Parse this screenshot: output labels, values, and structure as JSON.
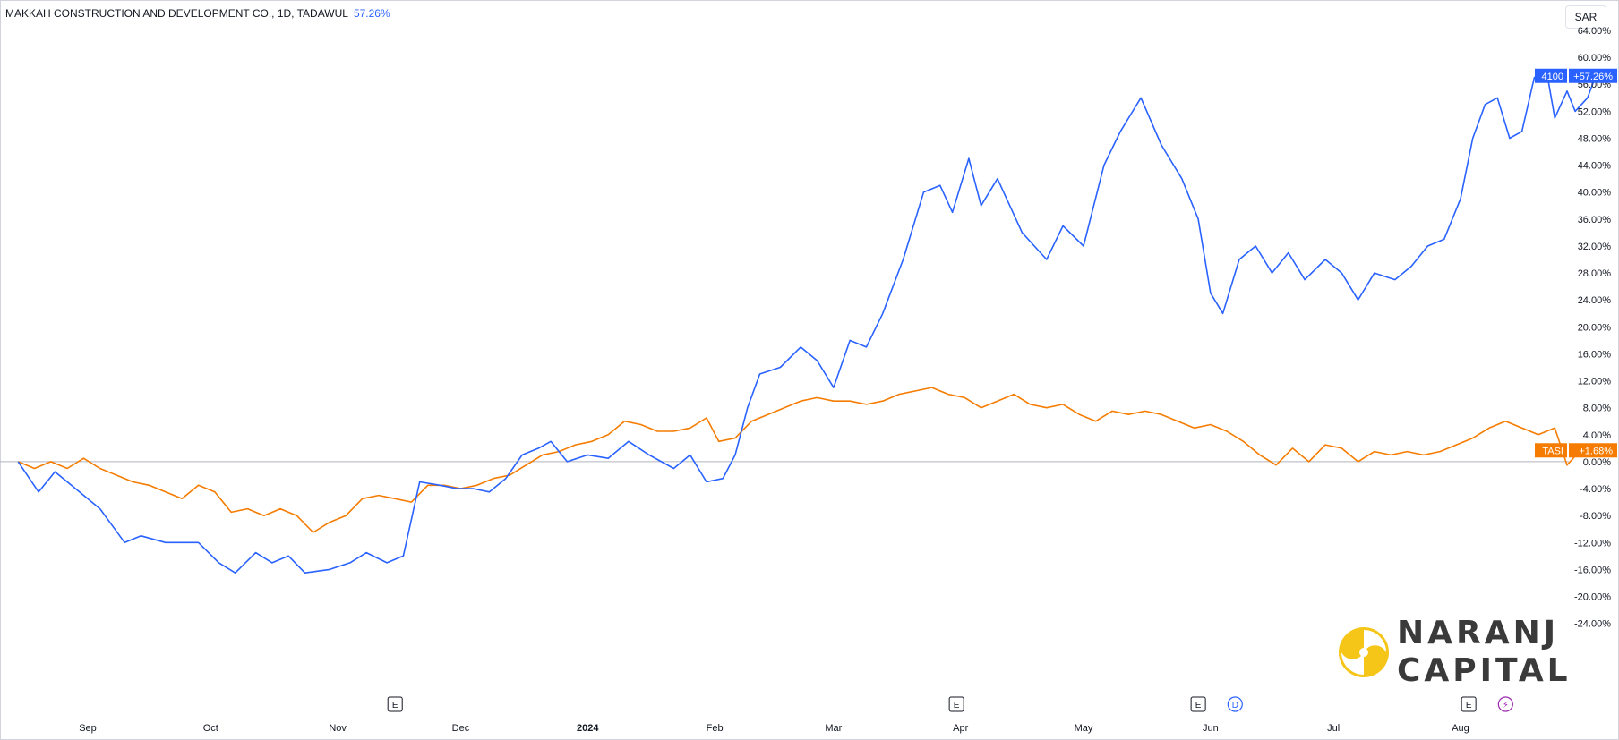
{
  "header": {
    "title": "MAKKAH CONSTRUCTION AND DEVELOPMENT CO., 1D, TADAWUL",
    "change": "57.26%"
  },
  "currency_button": "SAR",
  "watermark": {
    "line1": "NARANJ",
    "line2": "CAPITAL"
  },
  "colors": {
    "blue": "#2962ff",
    "orange": "#f57c00",
    "zero_line": "#b2b5be",
    "grid_text": "#131722"
  },
  "chart_data": {
    "type": "line",
    "title": "MAKKAH CONSTRUCTION AND DEVELOPMENT CO., 1D, TADAWUL",
    "y_unit": "%",
    "ylim": [
      -24,
      66
    ],
    "y_ticks": [
      "64.00%",
      "60.00%",
      "56.00%",
      "52.00%",
      "48.00%",
      "44.00%",
      "40.00%",
      "36.00%",
      "32.00%",
      "28.00%",
      "24.00%",
      "20.00%",
      "16.00%",
      "12.00%",
      "8.00%",
      "4.00%",
      "0.00%",
      "-4.00%",
      "-8.00%",
      "-12.00%",
      "-16.00%",
      "-20.00%",
      "-24.00%"
    ],
    "y_tick_values": [
      64,
      60,
      56,
      52,
      48,
      44,
      40,
      36,
      32,
      28,
      24,
      20,
      16,
      12,
      8,
      4,
      0,
      -4,
      -8,
      -12,
      -16,
      -20,
      -24
    ],
    "x_labels": [
      {
        "text": "Sep",
        "date": "2023-09-01"
      },
      {
        "text": "Oct",
        "date": "2023-10-01"
      },
      {
        "text": "Nov",
        "date": "2023-11-01"
      },
      {
        "text": "Dec",
        "date": "2023-12-01"
      },
      {
        "text": "2024",
        "date": "2024-01-01",
        "bold": true
      },
      {
        "text": "Feb",
        "date": "2024-02-01"
      },
      {
        "text": "Mar",
        "date": "2024-03-01"
      },
      {
        "text": "Apr",
        "date": "2024-04-01"
      },
      {
        "text": "May",
        "date": "2024-05-01"
      },
      {
        "text": "Jun",
        "date": "2024-06-01"
      },
      {
        "text": "Jul",
        "date": "2024-07-01"
      },
      {
        "text": "Aug",
        "date": "2024-08-01"
      }
    ],
    "x_range": [
      "2023-08-15",
      "2024-08-15"
    ],
    "grid": false,
    "series": [
      {
        "name": "4100",
        "label": "+57.26%",
        "color": "#2962ff",
        "points": [
          [
            "2023-08-15",
            0
          ],
          [
            "2023-08-20",
            -4.5
          ],
          [
            "2023-08-24",
            -1.5
          ],
          [
            "2023-08-28",
            -3.5
          ],
          [
            "2023-09-04",
            -7
          ],
          [
            "2023-09-10",
            -12
          ],
          [
            "2023-09-14",
            -11
          ],
          [
            "2023-09-20",
            -12
          ],
          [
            "2023-09-28",
            -12
          ],
          [
            "2023-10-03",
            -15
          ],
          [
            "2023-10-07",
            -16.5
          ],
          [
            "2023-10-12",
            -13.5
          ],
          [
            "2023-10-16",
            -15
          ],
          [
            "2023-10-20",
            -14
          ],
          [
            "2023-10-24",
            -16.5
          ],
          [
            "2023-10-30",
            -16
          ],
          [
            "2023-11-04",
            -15
          ],
          [
            "2023-11-08",
            -13.5
          ],
          [
            "2023-11-13",
            -15
          ],
          [
            "2023-11-17",
            -14
          ],
          [
            "2023-11-21",
            -3
          ],
          [
            "2023-11-26",
            -3.5
          ],
          [
            "2023-11-30",
            -4
          ],
          [
            "2023-12-04",
            -4
          ],
          [
            "2023-12-08",
            -4.5
          ],
          [
            "2023-12-12",
            -2.5
          ],
          [
            "2023-12-16",
            1
          ],
          [
            "2023-12-20",
            2
          ],
          [
            "2023-12-23",
            3
          ],
          [
            "2023-12-27",
            0
          ],
          [
            "2024-01-01",
            1
          ],
          [
            "2024-01-06",
            0.5
          ],
          [
            "2024-01-11",
            3
          ],
          [
            "2024-01-16",
            1
          ],
          [
            "2024-01-22",
            -1
          ],
          [
            "2024-01-26",
            1
          ],
          [
            "2024-01-30",
            -3
          ],
          [
            "2024-02-03",
            -2.5
          ],
          [
            "2024-02-06",
            1
          ],
          [
            "2024-02-09",
            8
          ],
          [
            "2024-02-12",
            13
          ],
          [
            "2024-02-17",
            14
          ],
          [
            "2024-02-22",
            17
          ],
          [
            "2024-02-26",
            15
          ],
          [
            "2024-03-01",
            11
          ],
          [
            "2024-03-05",
            18
          ],
          [
            "2024-03-09",
            17
          ],
          [
            "2024-03-13",
            22
          ],
          [
            "2024-03-18",
            30
          ],
          [
            "2024-03-23",
            40
          ],
          [
            "2024-03-27",
            41
          ],
          [
            "2024-03-30",
            37
          ],
          [
            "2024-04-03",
            45
          ],
          [
            "2024-04-06",
            38
          ],
          [
            "2024-04-10",
            42
          ],
          [
            "2024-04-16",
            34
          ],
          [
            "2024-04-22",
            30
          ],
          [
            "2024-04-26",
            35
          ],
          [
            "2024-05-01",
            32
          ],
          [
            "2024-05-06",
            44
          ],
          [
            "2024-05-10",
            49
          ],
          [
            "2024-05-15",
            54
          ],
          [
            "2024-05-20",
            47
          ],
          [
            "2024-05-25",
            42
          ],
          [
            "2024-05-29",
            36
          ],
          [
            "2024-06-01",
            25
          ],
          [
            "2024-06-04",
            22
          ],
          [
            "2024-06-08",
            30
          ],
          [
            "2024-06-12",
            32
          ],
          [
            "2024-06-16",
            28
          ],
          [
            "2024-06-20",
            31
          ],
          [
            "2024-06-24",
            27
          ],
          [
            "2024-06-29",
            30
          ],
          [
            "2024-07-03",
            28
          ],
          [
            "2024-07-07",
            24
          ],
          [
            "2024-07-11",
            28
          ],
          [
            "2024-07-16",
            27
          ],
          [
            "2024-07-20",
            29
          ],
          [
            "2024-07-24",
            32
          ],
          [
            "2024-07-28",
            33
          ],
          [
            "2024-08-01",
            39
          ],
          [
            "2024-08-04",
            48
          ],
          [
            "2024-08-07",
            53
          ],
          [
            "2024-08-10",
            54
          ],
          [
            "2024-08-13",
            48
          ],
          [
            "2024-08-16",
            49
          ],
          [
            "2024-08-19",
            57
          ],
          [
            "2024-08-22",
            58
          ],
          [
            "2024-08-24",
            51
          ],
          [
            "2024-08-27",
            55
          ],
          [
            "2024-08-29",
            52
          ],
          [
            "2024-09-01",
            54
          ],
          [
            "2024-09-03",
            57.26
          ]
        ]
      },
      {
        "name": "TASI",
        "label": "+1.68%",
        "color": "#f57c00",
        "points": [
          [
            "2023-08-15",
            0
          ],
          [
            "2023-08-19",
            -1
          ],
          [
            "2023-08-23",
            0
          ],
          [
            "2023-08-27",
            -1
          ],
          [
            "2023-08-31",
            0.5
          ],
          [
            "2023-09-04",
            -1
          ],
          [
            "2023-09-08",
            -2
          ],
          [
            "2023-09-12",
            -3
          ],
          [
            "2023-09-16",
            -3.5
          ],
          [
            "2023-09-20",
            -4.5
          ],
          [
            "2023-09-24",
            -5.5
          ],
          [
            "2023-09-28",
            -3.5
          ],
          [
            "2023-10-02",
            -4.5
          ],
          [
            "2023-10-06",
            -7.5
          ],
          [
            "2023-10-10",
            -7
          ],
          [
            "2023-10-14",
            -8
          ],
          [
            "2023-10-18",
            -7
          ],
          [
            "2023-10-22",
            -8
          ],
          [
            "2023-10-26",
            -10.5
          ],
          [
            "2023-10-30",
            -9
          ],
          [
            "2023-11-03",
            -8
          ],
          [
            "2023-11-07",
            -5.5
          ],
          [
            "2023-11-11",
            -5
          ],
          [
            "2023-11-15",
            -5.5
          ],
          [
            "2023-11-19",
            -6
          ],
          [
            "2023-11-23",
            -3.5
          ],
          [
            "2023-11-27",
            -3.5
          ],
          [
            "2023-12-01",
            -4
          ],
          [
            "2023-12-05",
            -3.5
          ],
          [
            "2023-12-09",
            -2.5
          ],
          [
            "2023-12-13",
            -2
          ],
          [
            "2023-12-17",
            -0.5
          ],
          [
            "2023-12-21",
            1
          ],
          [
            "2023-12-25",
            1.5
          ],
          [
            "2023-12-29",
            2.5
          ],
          [
            "2024-01-02",
            3
          ],
          [
            "2024-01-06",
            4
          ],
          [
            "2024-01-10",
            6
          ],
          [
            "2024-01-14",
            5.5
          ],
          [
            "2024-01-18",
            4.5
          ],
          [
            "2024-01-22",
            4.5
          ],
          [
            "2024-01-26",
            5
          ],
          [
            "2024-01-30",
            6.5
          ],
          [
            "2024-02-02",
            3
          ],
          [
            "2024-02-06",
            3.5
          ],
          [
            "2024-02-10",
            6
          ],
          [
            "2024-02-14",
            7
          ],
          [
            "2024-02-18",
            8
          ],
          [
            "2024-02-22",
            9
          ],
          [
            "2024-02-26",
            9.5
          ],
          [
            "2024-03-01",
            9
          ],
          [
            "2024-03-05",
            9
          ],
          [
            "2024-03-09",
            8.5
          ],
          [
            "2024-03-13",
            9
          ],
          [
            "2024-03-17",
            10
          ],
          [
            "2024-03-21",
            10.5
          ],
          [
            "2024-03-25",
            11
          ],
          [
            "2024-03-29",
            10
          ],
          [
            "2024-04-02",
            9.5
          ],
          [
            "2024-04-06",
            8
          ],
          [
            "2024-04-10",
            9
          ],
          [
            "2024-04-14",
            10
          ],
          [
            "2024-04-18",
            8.5
          ],
          [
            "2024-04-22",
            8
          ],
          [
            "2024-04-26",
            8.5
          ],
          [
            "2024-04-30",
            7
          ],
          [
            "2024-05-04",
            6
          ],
          [
            "2024-05-08",
            7.5
          ],
          [
            "2024-05-12",
            7
          ],
          [
            "2024-05-16",
            7.5
          ],
          [
            "2024-05-20",
            7
          ],
          [
            "2024-05-24",
            6
          ],
          [
            "2024-05-28",
            5
          ],
          [
            "2024-06-01",
            5.5
          ],
          [
            "2024-06-05",
            4.5
          ],
          [
            "2024-06-09",
            3
          ],
          [
            "2024-06-13",
            1
          ],
          [
            "2024-06-17",
            -0.5
          ],
          [
            "2024-06-21",
            2
          ],
          [
            "2024-06-25",
            0
          ],
          [
            "2024-06-29",
            2.5
          ],
          [
            "2024-07-03",
            2
          ],
          [
            "2024-07-07",
            0
          ],
          [
            "2024-07-11",
            1.5
          ],
          [
            "2024-07-15",
            1
          ],
          [
            "2024-07-19",
            1.5
          ],
          [
            "2024-07-23",
            1
          ],
          [
            "2024-07-27",
            1.5
          ],
          [
            "2024-07-31",
            2.5
          ],
          [
            "2024-08-04",
            3.5
          ],
          [
            "2024-08-08",
            5
          ],
          [
            "2024-08-12",
            6
          ],
          [
            "2024-08-16",
            5
          ],
          [
            "2024-08-20",
            4
          ],
          [
            "2024-08-24",
            5
          ],
          [
            "2024-08-27",
            -0.5
          ],
          [
            "2024-08-30",
            1.5
          ],
          [
            "2024-09-02",
            2
          ],
          [
            "2024-09-03",
            1.68
          ]
        ]
      }
    ],
    "event_markers": [
      {
        "type": "earnings",
        "symbol": "E",
        "date": "2023-11-15"
      },
      {
        "type": "earnings",
        "symbol": "E",
        "date": "2024-03-31"
      },
      {
        "type": "earnings",
        "symbol": "E",
        "date": "2024-05-29"
      },
      {
        "type": "dividend",
        "symbol": "D",
        "date": "2024-06-07"
      },
      {
        "type": "earnings",
        "symbol": "E",
        "date": "2024-08-03"
      },
      {
        "type": "split",
        "symbol": "⚡",
        "date": "2024-08-12"
      }
    ]
  }
}
